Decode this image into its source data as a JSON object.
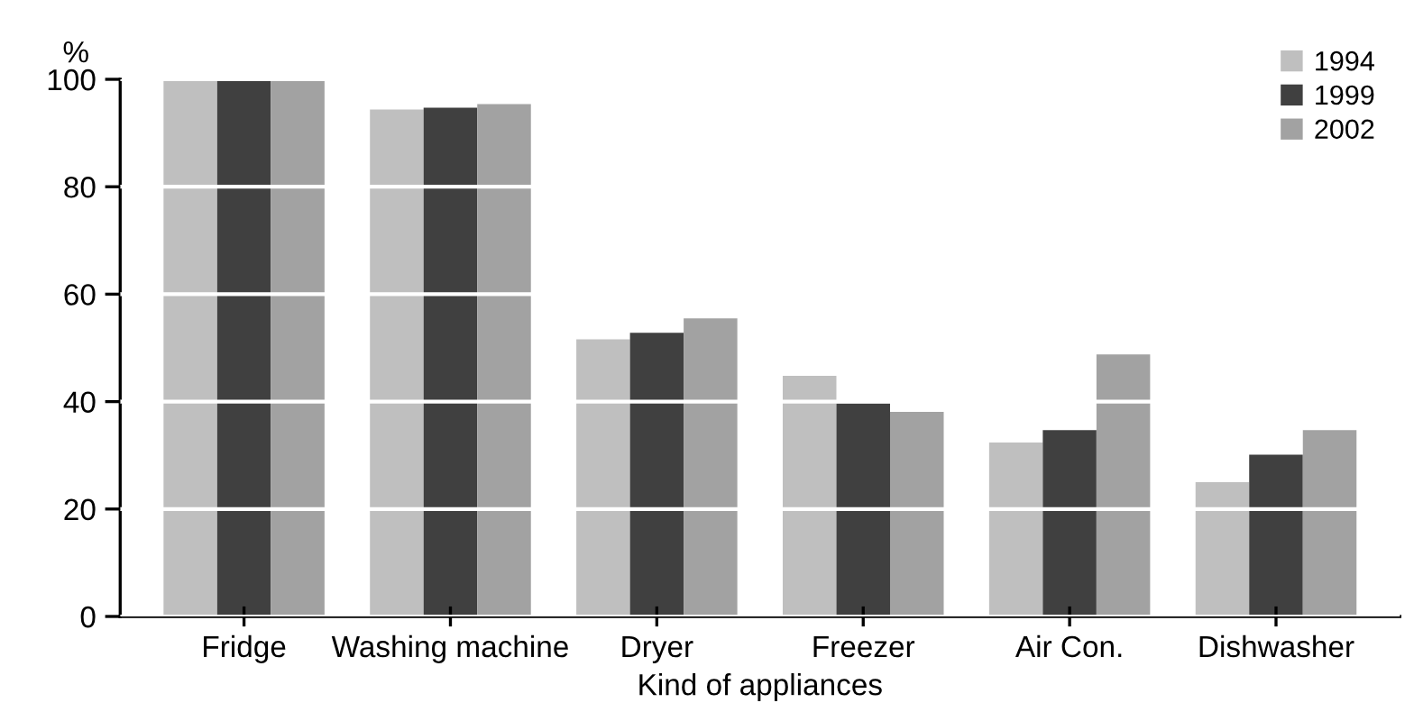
{
  "chart_data": {
    "type": "bar",
    "ylabel": "%",
    "xlabel": "Kind of appliances",
    "categories": [
      "Fridge",
      "Washing machine",
      "Dryer",
      "Freezer",
      "Air Con.",
      "Dishwasher"
    ],
    "series": [
      {
        "name": "1994",
        "color": "#bfbfbf",
        "values": [
          100,
          94.4,
          51.6,
          44.8,
          32.4,
          25.0
        ]
      },
      {
        "name": "1999",
        "color": "#404040",
        "values": [
          100,
          94.7,
          52.8,
          39.7,
          34.7,
          30.1
        ]
      },
      {
        "name": "2002",
        "color": "#a2a2a2",
        "values": [
          100,
          95.4,
          55.5,
          38.1,
          48.8,
          34.7
        ]
      }
    ],
    "ylim": [
      0,
      100
    ],
    "yticks": [
      0,
      20,
      40,
      60,
      80,
      100
    ],
    "grid": "y",
    "legend": "top right"
  }
}
